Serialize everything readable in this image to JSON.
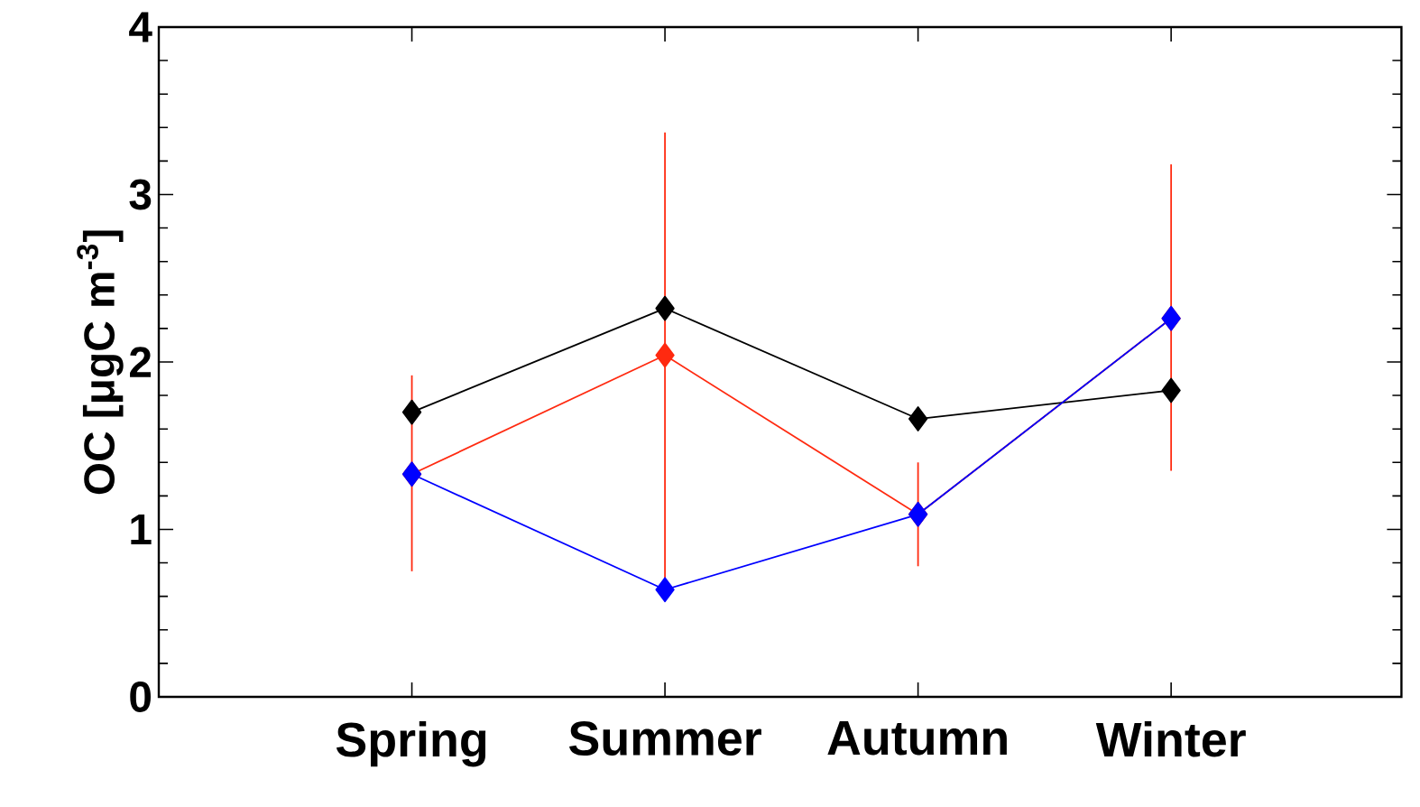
{
  "chart_data": {
    "type": "line",
    "ylabel": "OC [μgC m$^{-3}$]",
    "categories": [
      "Spring",
      "Summer",
      "Autumn",
      "Winter"
    ],
    "ylim": [
      0,
      4
    ],
    "yticks": [
      0,
      1,
      2,
      3,
      4
    ],
    "grid": false,
    "marker": "diamond",
    "line_style": "solid",
    "series": [
      {
        "color": "#ff2a10",
        "values": [
          1.33,
          2.04,
          1.09,
          2.26
        ],
        "errors": [
          [
            0.75,
            1.92
          ],
          [
            0.69,
            3.37
          ],
          [
            0.78,
            1.4
          ],
          [
            1.35,
            3.18
          ]
        ]
      },
      {
        "color": "#000000",
        "values": [
          1.7,
          2.32,
          1.66,
          1.83
        ]
      },
      {
        "color": "#0000ff",
        "values": [
          1.33,
          0.64,
          1.09,
          2.26
        ]
      }
    ]
  }
}
